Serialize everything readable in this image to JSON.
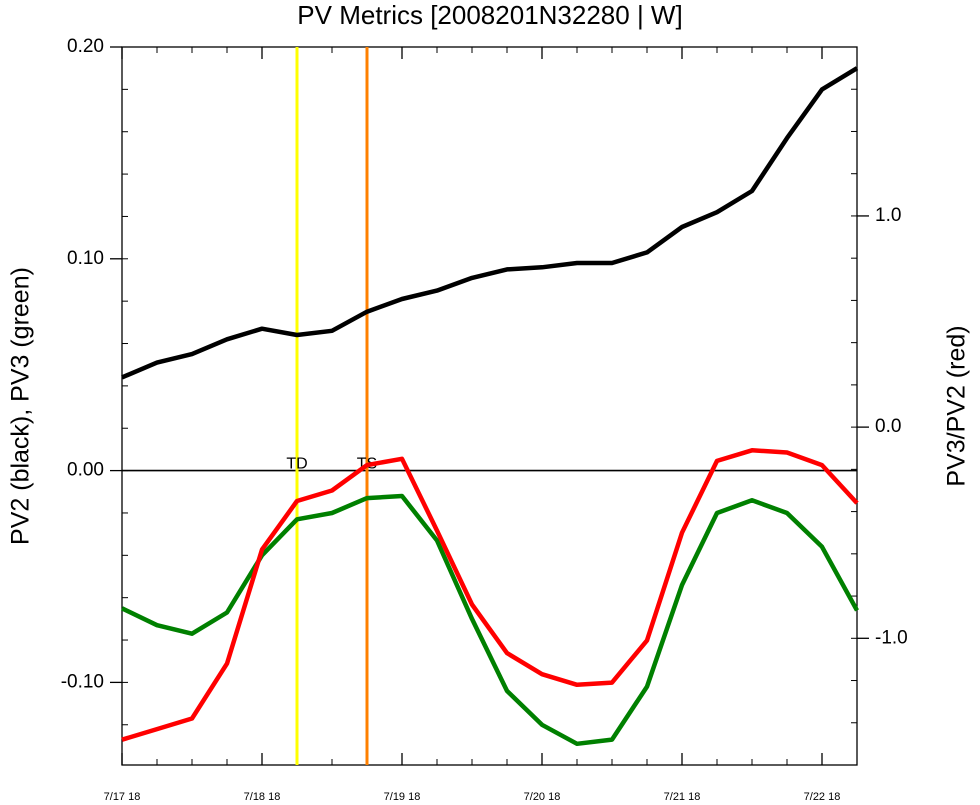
{
  "chart_data": {
    "type": "line",
    "title": "PV Metrics [2008201N32280 | W]",
    "ylabel_left": "PV2 (black), PV3 (green)",
    "ylabel_right": "PV3/PV2 (red)",
    "x_tick_labels": [
      "7/17 18",
      "7/18 18",
      "7/19 18",
      "7/20 18",
      "7/21 18",
      "7/22 18"
    ],
    "x_tick_hours": [
      0,
      24,
      48,
      72,
      96,
      120
    ],
    "x_hours": [
      0,
      6,
      12,
      18,
      24,
      30,
      36,
      42,
      48,
      54,
      60,
      66,
      72,
      78,
      84,
      90,
      96,
      102,
      108,
      114,
      120,
      126
    ],
    "xlim_hours": [
      0,
      126
    ],
    "left_axis": {
      "ylim": [
        -0.139,
        0.2
      ],
      "major_ticks": [
        -0.1,
        0.0,
        0.1,
        0.2
      ],
      "tick_labels": [
        "-0.10",
        "0.00",
        "0.10",
        "0.20"
      ],
      "minor_step": 0.02
    },
    "right_axis": {
      "ylim": [
        -1.6,
        1.8
      ],
      "major_ticks": [
        -1.0,
        0.0,
        1.0
      ],
      "tick_labels": [
        "-1.0",
        "0.0",
        "1.0"
      ],
      "minor_step": 0.2
    },
    "zero_line": 0.0,
    "series": [
      {
        "axis": "left",
        "color": "#000000",
        "values": [
          0.044,
          0.051,
          0.055,
          0.062,
          0.067,
          0.064,
          0.066,
          0.075,
          0.081,
          0.085,
          0.091,
          0.095,
          0.096,
          0.098,
          0.098,
          0.103,
          0.115,
          0.122,
          0.132,
          0.157,
          0.18,
          0.19
        ]
      },
      {
        "axis": "left",
        "color": "#008000",
        "values": [
          -0.065,
          -0.073,
          -0.077,
          -0.067,
          -0.04,
          -0.023,
          -0.02,
          -0.013,
          -0.012,
          -0.033,
          -0.07,
          -0.104,
          -0.12,
          -0.129,
          -0.127,
          -0.102,
          -0.054,
          -0.02,
          -0.014,
          -0.02,
          -0.036,
          -0.066
        ]
      },
      {
        "axis": "right",
        "color": "#ff0000",
        "values": [
          -1.48,
          -1.43,
          -1.38,
          -1.12,
          -0.58,
          -0.35,
          -0.3,
          -0.18,
          -0.15,
          -0.49,
          -0.84,
          -1.07,
          -1.17,
          -1.22,
          -1.21,
          -1.01,
          -0.5,
          -0.16,
          -0.11,
          -0.12,
          -0.18,
          -0.36
        ]
      }
    ],
    "markers": [
      {
        "label": "TD",
        "hour": 30,
        "color": "#ffff00"
      },
      {
        "label": "TS",
        "hour": 42,
        "color": "#ff8000"
      }
    ],
    "grid": false
  }
}
